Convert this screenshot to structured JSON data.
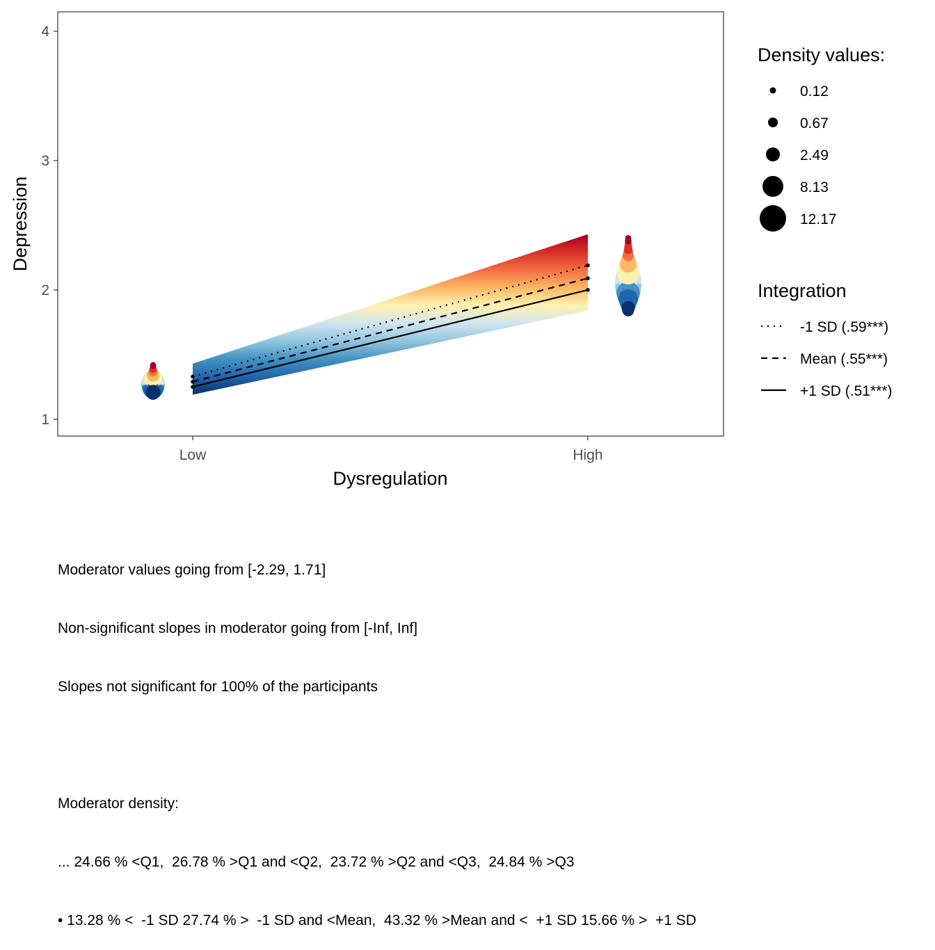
{
  "chart_data": {
    "type": "line",
    "xlabel": "Dysregulation",
    "ylabel": "Depression",
    "categories": [
      "Low",
      "High"
    ],
    "ylim": [
      0.87,
      4.15
    ],
    "yticks": [
      1,
      2,
      3,
      4
    ],
    "series": [
      {
        "name": "-1 SD (.59***)",
        "linestyle": "dotted",
        "values": [
          1.33,
          2.19
        ]
      },
      {
        "name": "Mean (.55***)",
        "linestyle": "dashed",
        "values": [
          1.29,
          2.09
        ]
      },
      {
        "name": "+1 SD (.51***)",
        "linestyle": "solid",
        "values": [
          1.25,
          2.0
        ]
      }
    ],
    "band": {
      "low": [
        1.19,
        1.84
      ],
      "high": [
        1.43,
        2.43
      ]
    },
    "density_ranges": {
      "low": [
        1.2,
        1.42
      ],
      "high": [
        1.84,
        2.4
      ]
    },
    "density_centers": {
      "low": 1.27,
      "high": 2.05
    },
    "grid": false,
    "colormap": [
      "#08306b",
      "#2166ac",
      "#4393c3",
      "#92c5de",
      "#d1e5f0",
      "#fff2b0",
      "#fdb863",
      "#f46d43",
      "#d73027",
      "#a50026"
    ]
  },
  "legend_density": {
    "title": "Density values:",
    "items": [
      {
        "label": "0.12",
        "value": 0.12
      },
      {
        "label": "0.67",
        "value": 0.67
      },
      {
        "label": "2.49",
        "value": 2.49
      },
      {
        "label": "8.13",
        "value": 8.13
      },
      {
        "label": "12.17",
        "value": 12.17
      }
    ]
  },
  "legend_integration": {
    "title": "Integration",
    "items": [
      {
        "label": "-1 SD (.59***)",
        "linestyle": "dotted"
      },
      {
        "label": "Mean (.55***)",
        "linestyle": "dashed"
      },
      {
        "label": "+1 SD (.51***)",
        "linestyle": "solid"
      }
    ]
  },
  "caption": {
    "line1": "Moderator values going from [-2.29, 1.71]",
    "line2": "Non-significant slopes in moderator going from [-Inf, Inf]",
    "line3": "Slopes not significant for 100% of the participants",
    "line4": "",
    "line5": "Moderator density:",
    "line6": "... 24.66 % <Q1,  26.78 % >Q1 and <Q2,  23.72 % >Q2 and <Q3,  24.84 % >Q3",
    "line7": "• 13.28 % <  -1 SD 27.74 % >  -1 SD and <Mean,  43.32 % >Mean and <  +1 SD 15.66 % >  +1 SD"
  }
}
